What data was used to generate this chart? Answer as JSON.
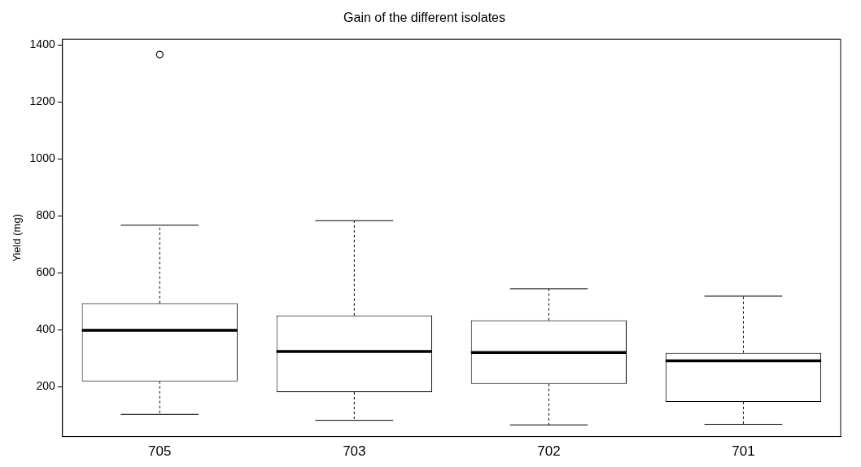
{
  "chart_data": {
    "type": "box",
    "title": "Gain of the different isolates",
    "ylabel": "Yield (mg)",
    "categories": [
      "705",
      "703",
      "702",
      "701"
    ],
    "boxes": [
      {
        "low": 103,
        "q1": 219,
        "median": 398,
        "q3": 493,
        "high": 767,
        "outliers": [
          1366
        ]
      },
      {
        "low": 82,
        "q1": 181,
        "median": 324,
        "q3": 450,
        "high": 783
      },
      {
        "low": 66,
        "q1": 210,
        "median": 320,
        "q3": 433,
        "high": 544
      },
      {
        "low": 68,
        "q1": 147,
        "median": 291,
        "q3": 319,
        "high": 518
      }
    ],
    "ylim": [
      25,
      1420
    ],
    "yticks": [
      200,
      400,
      600,
      800,
      1000,
      1200,
      1400
    ],
    "grid": false,
    "legend": false
  }
}
